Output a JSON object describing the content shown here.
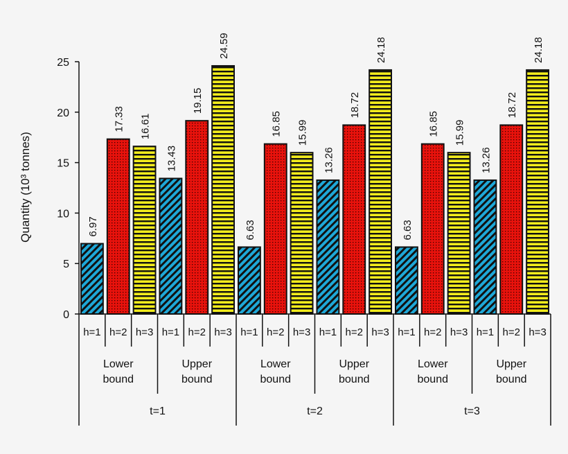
{
  "chart_data": {
    "type": "bar",
    "title": "",
    "ylabel": "Quantity (10³ tonnes)",
    "xlabel": "",
    "ylim": [
      0,
      25
    ],
    "yticks": [
      "0",
      "5",
      "10",
      "15",
      "20",
      "25"
    ],
    "categories_t": [
      "t=1",
      "t=2",
      "t=3"
    ],
    "categories_bound": [
      "Lower bound",
      "Upper bound"
    ],
    "categories_h": [
      "h=1",
      "h=2",
      "h=3"
    ],
    "series_colors": {
      "h=1": "#1ea8d8",
      "h=2": "#e8120c",
      "h=3": "#f2ec1c"
    },
    "values": [
      [
        [
          6.97,
          17.33,
          16.61
        ],
        [
          13.43,
          19.15,
          24.59
        ]
      ],
      [
        [
          6.63,
          16.85,
          15.99
        ],
        [
          13.26,
          18.72,
          24.18
        ]
      ],
      [
        [
          6.63,
          16.85,
          15.99
        ],
        [
          13.26,
          18.72,
          24.18
        ]
      ]
    ],
    "labels": [
      [
        [
          "6.97",
          "17.33",
          "16.61"
        ],
        [
          "13.43",
          "19.15",
          "24.59"
        ]
      ],
      [
        [
          "6.63",
          "16.85",
          "15.99"
        ],
        [
          "13.26",
          "18.72",
          "24.18"
        ]
      ],
      [
        [
          "6.63",
          "16.85",
          "15.99"
        ],
        [
          "13.26",
          "18.72",
          "24.18"
        ]
      ]
    ]
  }
}
